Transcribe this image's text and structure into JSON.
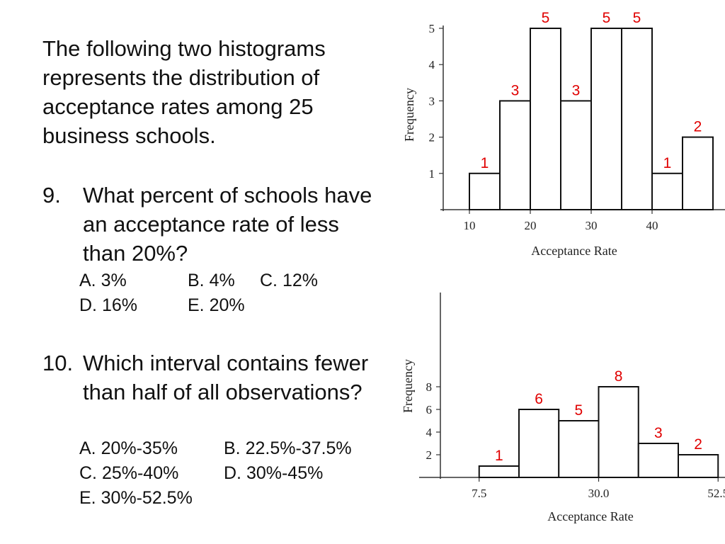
{
  "intro": "The following two histograms represents the distribution of acceptance rates among 25 business schools.",
  "questions": [
    {
      "number": "9.",
      "text": "What percent of schools have an acceptance rate of less than 20%?",
      "options": [
        "A.   3%",
        "B. 4%",
        "C. 12%",
        "D. 16%",
        "E. 20%"
      ]
    },
    {
      "number": "10.",
      "text": "Which interval contains fewer than half of all observations?",
      "options": [
        "A. 20%-35%",
        "B. 22.5%-37.5%",
        "C. 25%-40%",
        "D. 30%-45%",
        "E. 30%-52.5%"
      ]
    }
  ],
  "chart_data": [
    {
      "type": "bar",
      "bin_edges": [
        10,
        15,
        20,
        25,
        30,
        35,
        40,
        45,
        50
      ],
      "values": [
        1,
        3,
        5,
        3,
        5,
        5,
        1,
        2
      ],
      "data_labels": [
        "1",
        "3",
        "5",
        "3",
        "5",
        "5",
        "1",
        "2"
      ],
      "xlabel": "Acceptance Rate",
      "ylabel": "Frequency",
      "x_ticks": [
        "10",
        "20",
        "30",
        "40"
      ],
      "x_tick_values": [
        10,
        20,
        30,
        40
      ],
      "y_ticks": [
        "1",
        "2",
        "3",
        "4",
        "5"
      ],
      "y_tick_values": [
        1,
        2,
        3,
        4,
        5
      ],
      "xlim": [
        5,
        50
      ],
      "ylim": [
        0,
        5
      ],
      "bar_fill": "#ffffff",
      "label_color": "#e00000"
    },
    {
      "type": "bar",
      "bin_edges": [
        7.5,
        15,
        22.5,
        30,
        37.5,
        45,
        52.5
      ],
      "values": [
        1,
        6,
        5,
        8,
        3,
        2
      ],
      "data_labels": [
        "1",
        "6",
        "5",
        "8",
        "3",
        "2"
      ],
      "xlabel": "Acceptance Rate",
      "ylabel": "Frequency",
      "x_ticks": [
        "7.5",
        "30.0",
        "52.5"
      ],
      "x_tick_values": [
        7.5,
        30,
        52.5
      ],
      "y_ticks": [
        "2",
        "4",
        "6",
        "8"
      ],
      "y_tick_values": [
        2,
        4,
        6,
        8
      ],
      "xlim": [
        3,
        55
      ],
      "ylim": [
        0,
        8
      ],
      "bar_fill": "#ffffff",
      "label_color": "#e00000"
    }
  ]
}
